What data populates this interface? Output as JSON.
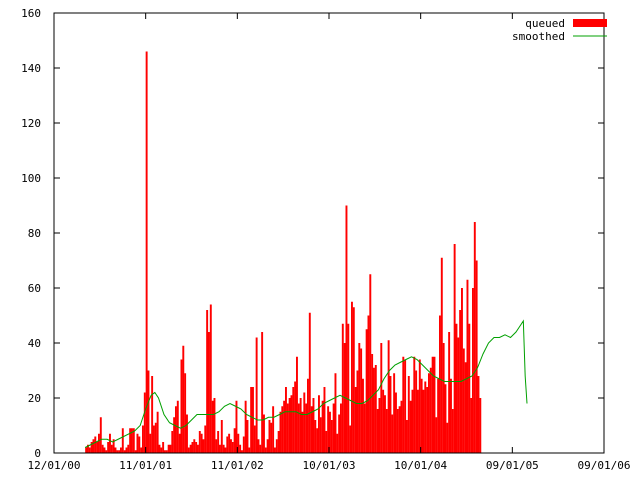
{
  "chart_data": {
    "type": "bar",
    "title": "",
    "xlabel": "",
    "ylabel": "",
    "ylim": [
      0,
      160
    ],
    "yticks": [
      0,
      20,
      40,
      60,
      80,
      100,
      120,
      140,
      160
    ],
    "xlim_label": [
      "12/01/00",
      "09/01/06"
    ],
    "xtick_labels": [
      "12/01/00",
      "11/01/01",
      "11/01/02",
      "10/01/03",
      "10/01/04",
      "09/01/05",
      "09/01/06"
    ],
    "grid": false,
    "legend_position": "top-right",
    "colors": {
      "queued": "#ff0000",
      "smoothed": "#00a000",
      "axis": "#000000"
    },
    "series": [
      {
        "name": "queued",
        "kind": "bar",
        "start_week": 17,
        "values": [
          2,
          3,
          2,
          4,
          5,
          6,
          4,
          7,
          13,
          3,
          2,
          1,
          4,
          7,
          3,
          5,
          2,
          1,
          1,
          2,
          9,
          1,
          2,
          3,
          9,
          9,
          9,
          1,
          7,
          6,
          2,
          10,
          22,
          146,
          30,
          7,
          28,
          10,
          11,
          15,
          3,
          2,
          4,
          1,
          1,
          3,
          3,
          8,
          13,
          17,
          19,
          7,
          34,
          39,
          29,
          14,
          2,
          3,
          4,
          5,
          4,
          3,
          8,
          7,
          5,
          10,
          52,
          44,
          54,
          19,
          20,
          5,
          8,
          3,
          12,
          3,
          2,
          6,
          7,
          5,
          4,
          9,
          19,
          7,
          3,
          1,
          6,
          19,
          12,
          2,
          24,
          24,
          10,
          42,
          5,
          3,
          44,
          14,
          2,
          5,
          12,
          11,
          17,
          2,
          5,
          8,
          15,
          17,
          19,
          24,
          18,
          20,
          21,
          24,
          26,
          35,
          18,
          20,
          15,
          22,
          18,
          27,
          51,
          17,
          20,
          12,
          9,
          21,
          13,
          19,
          24,
          8,
          17,
          15,
          12,
          18,
          29,
          7,
          14,
          18,
          47,
          40,
          90,
          47,
          10,
          55,
          53,
          24,
          30,
          40,
          38,
          27,
          18,
          45,
          50,
          65,
          36,
          31,
          32,
          16,
          20,
          40,
          23,
          21,
          16,
          41,
          28,
          14,
          29,
          22,
          16,
          17,
          19,
          35,
          34,
          12,
          28,
          19,
          23,
          35,
          30,
          23,
          34,
          27,
          23,
          26,
          24,
          29,
          31,
          35,
          35,
          13,
          27,
          50,
          71,
          40,
          25,
          11,
          44,
          27,
          16,
          76,
          47,
          42,
          52,
          60,
          38,
          33,
          63,
          47,
          20,
          60,
          84,
          70,
          28,
          20
        ]
      },
      {
        "name": "smoothed",
        "kind": "line",
        "points": [
          [
            17,
            2
          ],
          [
            20,
            3
          ],
          [
            23,
            4
          ],
          [
            26,
            5
          ],
          [
            29,
            5
          ],
          [
            32,
            4
          ],
          [
            35,
            5
          ],
          [
            38,
            6
          ],
          [
            41,
            7
          ],
          [
            44,
            8
          ],
          [
            47,
            10
          ],
          [
            50,
            16
          ],
          [
            53,
            21
          ],
          [
            55,
            22
          ],
          [
            57,
            20
          ],
          [
            60,
            14
          ],
          [
            63,
            11
          ],
          [
            66,
            10
          ],
          [
            69,
            9
          ],
          [
            72,
            10
          ],
          [
            75,
            12
          ],
          [
            78,
            14
          ],
          [
            81,
            14
          ],
          [
            84,
            14
          ],
          [
            87,
            14
          ],
          [
            90,
            15
          ],
          [
            93,
            17
          ],
          [
            96,
            18
          ],
          [
            99,
            17
          ],
          [
            102,
            16
          ],
          [
            105,
            14
          ],
          [
            108,
            13
          ],
          [
            111,
            12
          ],
          [
            114,
            12
          ],
          [
            117,
            13
          ],
          [
            120,
            13
          ],
          [
            123,
            14
          ],
          [
            126,
            15
          ],
          [
            129,
            15
          ],
          [
            132,
            15
          ],
          [
            135,
            14
          ],
          [
            138,
            14
          ],
          [
            141,
            15
          ],
          [
            144,
            16
          ],
          [
            147,
            18
          ],
          [
            150,
            19
          ],
          [
            153,
            20
          ],
          [
            156,
            21
          ],
          [
            159,
            20
          ],
          [
            162,
            19
          ],
          [
            165,
            18
          ],
          [
            168,
            18
          ],
          [
            171,
            19
          ],
          [
            174,
            21
          ],
          [
            177,
            23
          ],
          [
            180,
            27
          ],
          [
            183,
            30
          ],
          [
            186,
            32
          ],
          [
            189,
            33
          ],
          [
            192,
            34
          ],
          [
            195,
            35
          ],
          [
            198,
            34
          ],
          [
            201,
            32
          ],
          [
            204,
            30
          ],
          [
            207,
            28
          ],
          [
            210,
            27
          ],
          [
            213,
            26
          ],
          [
            216,
            26
          ],
          [
            219,
            26
          ],
          [
            222,
            26
          ],
          [
            225,
            27
          ],
          [
            228,
            28
          ],
          [
            231,
            31
          ],
          [
            234,
            36
          ],
          [
            237,
            40
          ],
          [
            240,
            42
          ],
          [
            243,
            42
          ],
          [
            246,
            43
          ],
          [
            249,
            42
          ],
          [
            252,
            44
          ],
          [
            254,
            46
          ],
          [
            256,
            48
          ],
          [
            257,
            28
          ],
          [
            258,
            18
          ]
        ]
      }
    ]
  }
}
